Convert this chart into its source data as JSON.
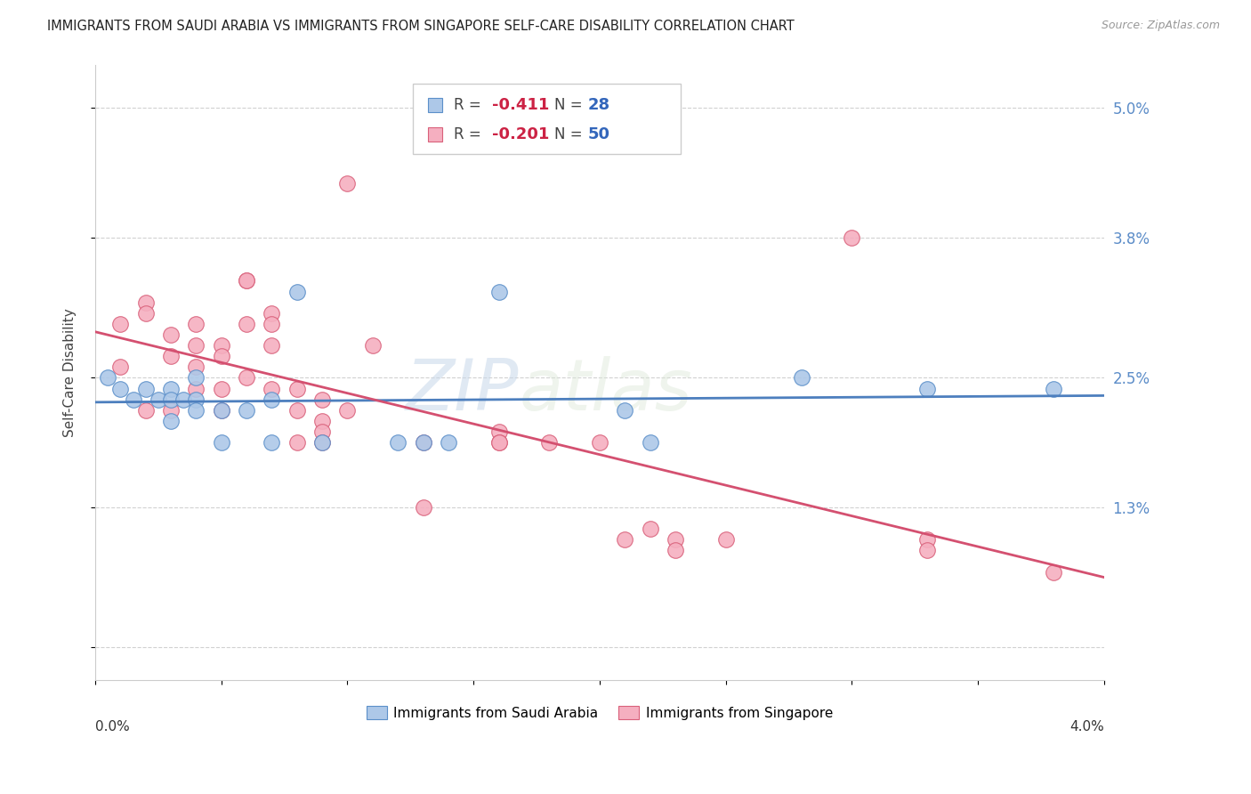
{
  "title": "IMMIGRANTS FROM SAUDI ARABIA VS IMMIGRANTS FROM SINGAPORE SELF-CARE DISABILITY CORRELATION CHART",
  "source": "Source: ZipAtlas.com",
  "ylabel": "Self-Care Disability",
  "yticks": [
    0.0,
    0.013,
    0.025,
    0.038,
    0.05
  ],
  "ytick_labels": [
    "",
    "1.3%",
    "2.5%",
    "3.8%",
    "5.0%"
  ],
  "xlim": [
    0.0,
    0.04
  ],
  "ylim": [
    -0.003,
    0.054
  ],
  "saudi_R": "-0.411",
  "saudi_N": "28",
  "singapore_R": "-0.201",
  "singapore_N": "50",
  "saudi_color": "#adc8e8",
  "singapore_color": "#f5afc0",
  "saudi_edge_color": "#5b8fc9",
  "singapore_edge_color": "#d9607a",
  "saudi_line_color": "#4d7fbe",
  "singapore_line_color": "#d45070",
  "watermark_zip": "ZIP",
  "watermark_atlas": "atlas",
  "saudi_x": [
    0.0005,
    0.001,
    0.0015,
    0.002,
    0.0025,
    0.003,
    0.003,
    0.003,
    0.0035,
    0.004,
    0.004,
    0.004,
    0.005,
    0.005,
    0.006,
    0.007,
    0.007,
    0.008,
    0.009,
    0.012,
    0.013,
    0.014,
    0.016,
    0.021,
    0.022,
    0.028,
    0.033,
    0.038
  ],
  "saudi_y": [
    0.025,
    0.024,
    0.023,
    0.024,
    0.023,
    0.024,
    0.023,
    0.021,
    0.023,
    0.023,
    0.022,
    0.025,
    0.022,
    0.019,
    0.022,
    0.023,
    0.019,
    0.033,
    0.019,
    0.019,
    0.019,
    0.019,
    0.033,
    0.022,
    0.019,
    0.025,
    0.024,
    0.024
  ],
  "singapore_x": [
    0.001,
    0.001,
    0.002,
    0.002,
    0.002,
    0.003,
    0.003,
    0.003,
    0.004,
    0.004,
    0.004,
    0.004,
    0.005,
    0.005,
    0.005,
    0.005,
    0.006,
    0.006,
    0.006,
    0.006,
    0.007,
    0.007,
    0.007,
    0.007,
    0.008,
    0.008,
    0.008,
    0.009,
    0.009,
    0.009,
    0.009,
    0.01,
    0.01,
    0.011,
    0.013,
    0.013,
    0.016,
    0.016,
    0.016,
    0.018,
    0.02,
    0.021,
    0.022,
    0.023,
    0.023,
    0.025,
    0.03,
    0.033,
    0.033,
    0.038
  ],
  "singapore_y": [
    0.03,
    0.026,
    0.032,
    0.031,
    0.022,
    0.029,
    0.027,
    0.022,
    0.03,
    0.028,
    0.026,
    0.024,
    0.028,
    0.027,
    0.024,
    0.022,
    0.034,
    0.034,
    0.03,
    0.025,
    0.031,
    0.03,
    0.028,
    0.024,
    0.024,
    0.022,
    0.019,
    0.023,
    0.021,
    0.02,
    0.019,
    0.043,
    0.022,
    0.028,
    0.019,
    0.013,
    0.02,
    0.019,
    0.019,
    0.019,
    0.019,
    0.01,
    0.011,
    0.01,
    0.009,
    0.01,
    0.038,
    0.01,
    0.009,
    0.007
  ]
}
